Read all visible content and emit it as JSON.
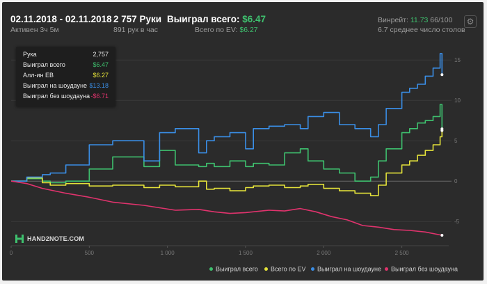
{
  "header": {
    "date_range": "02.11.2018 - 02.11.2018",
    "active": "Активен 3ч 5м",
    "hands": "2 757 Руки",
    "hands_per_hour": "891 рук в час",
    "won_total_label": "Выиграл всего:",
    "won_total_value": "$6.47",
    "ev_label": "Всего по EV:",
    "ev_value": "$6.27",
    "winrate_label": "Винрейт:",
    "winrate_value": "11.73",
    "winrate_unit": "66/100",
    "avg_tables": "6.7 среднее число столов",
    "settings_icon": "gear-icon"
  },
  "tooltip": {
    "rows": [
      {
        "label": "Рука",
        "value": "2,757",
        "color": "#e8e8e8"
      },
      {
        "label": "Выиграл всего",
        "value": "$6.47",
        "color": "#3ec06e"
      },
      {
        "label": "Алл-ин EB",
        "value": "$6.27",
        "color": "#e4e23a"
      },
      {
        "label": "Выиграл на шоудауне",
        "value": "$13.18",
        "color": "#3a8ee6"
      },
      {
        "label": "Выиграл без шоудауна",
        "value": "-$6.71",
        "color": "#e0336d"
      }
    ]
  },
  "logo": {
    "text": "HAND2NOTE.COM"
  },
  "legend": {
    "items": [
      {
        "label": "Выиграл всего",
        "color": "#3ec06e"
      },
      {
        "label": "Всего по EV",
        "color": "#e4e23a"
      },
      {
        "label": "Выиграл на шоудауне",
        "color": "#3a8ee6"
      },
      {
        "label": "Выиграл без шоудауна",
        "color": "#e0336d"
      }
    ]
  },
  "chart_data": {
    "type": "line",
    "xlim": [
      0,
      2800
    ],
    "ylim": [
      -8,
      17
    ],
    "x_ticks": [
      0,
      500,
      1000,
      1500,
      2000,
      2500
    ],
    "x_tick_labels": [
      "0",
      "500",
      "1 000",
      "1 500",
      "2 000",
      "2 500"
    ],
    "y_ticks": [
      15,
      10,
      5,
      0,
      -5
    ],
    "y_tick_labels": [
      "15",
      "10",
      "5",
      "0",
      "-5"
    ],
    "grid": "horizontal",
    "legend_position": "bottom-right",
    "series": [
      {
        "name": "Выиграл всего",
        "color": "#3ec06e",
        "step": true,
        "x": [
          0,
          100,
          200,
          250,
          350,
          500,
          650,
          850,
          950,
          1050,
          1200,
          1250,
          1300,
          1400,
          1500,
          1550,
          1650,
          1750,
          1850,
          1900,
          2000,
          2100,
          2200,
          2300,
          2350,
          2400,
          2500,
          2550,
          2600,
          2650,
          2700,
          2745,
          2757
        ],
        "y": [
          0,
          0.3,
          0,
          -0.2,
          0,
          1.5,
          3,
          1.8,
          3.8,
          2,
          1.8,
          2.2,
          1.8,
          2.5,
          1.8,
          2.2,
          2,
          3.5,
          4,
          2.5,
          1.5,
          1,
          0,
          0.5,
          2.5,
          4,
          6,
          6.5,
          7.2,
          7.5,
          8,
          9.5,
          6.47
        ]
      },
      {
        "name": "Всего по EV",
        "color": "#e4e23a",
        "step": true,
        "x": [
          0,
          100,
          200,
          250,
          350,
          500,
          650,
          850,
          950,
          1050,
          1200,
          1250,
          1300,
          1400,
          1500,
          1550,
          1650,
          1750,
          1850,
          1900,
          2000,
          2100,
          2200,
          2300,
          2350,
          2400,
          2500,
          2550,
          2600,
          2650,
          2700,
          2745,
          2757
        ],
        "y": [
          0,
          0.4,
          -0.2,
          -0.5,
          -0.3,
          -0.6,
          -0.5,
          -0.8,
          -0.5,
          -0.7,
          0,
          -1,
          -0.9,
          -1.2,
          -0.8,
          -0.6,
          -0.5,
          -0.8,
          -0.6,
          -0.4,
          -0.9,
          -1.2,
          -1.5,
          -1.8,
          -0.5,
          1,
          2,
          2.5,
          3.2,
          3.8,
          4.5,
          5.5,
          6.27
        ]
      },
      {
        "name": "Выиграл на шоудауне",
        "color": "#3a8ee6",
        "step": true,
        "x": [
          0,
          100,
          200,
          250,
          350,
          500,
          650,
          850,
          950,
          1050,
          1200,
          1250,
          1300,
          1400,
          1500,
          1550,
          1650,
          1750,
          1850,
          1900,
          2000,
          2100,
          2200,
          2300,
          2350,
          2400,
          2500,
          2550,
          2600,
          2650,
          2700,
          2745,
          2757
        ],
        "y": [
          0,
          0.5,
          0.8,
          1,
          2,
          4.5,
          5,
          2.5,
          6,
          6.5,
          3.5,
          5,
          5.5,
          6,
          4,
          6.5,
          6.8,
          7,
          6.5,
          8,
          8.5,
          7,
          6.5,
          5.5,
          7,
          9,
          11,
          11.5,
          12,
          13,
          14,
          15.8,
          13.18
        ]
      },
      {
        "name": "Выиграл без шоудауна",
        "color": "#e0336d",
        "step": false,
        "x": [
          0,
          100,
          200,
          350,
          500,
          650,
          850,
          950,
          1050,
          1200,
          1300,
          1400,
          1500,
          1650,
          1750,
          1850,
          1950,
          2050,
          2150,
          2250,
          2350,
          2450,
          2550,
          2650,
          2757
        ],
        "y": [
          0,
          -0.3,
          -0.9,
          -1.5,
          -2,
          -2.6,
          -3,
          -3.3,
          -3.6,
          -3.5,
          -3.8,
          -4,
          -3.9,
          -3.6,
          -3.7,
          -3.4,
          -3.8,
          -4.4,
          -4.8,
          -5.5,
          -5.7,
          -6,
          -6.1,
          -6.3,
          -6.71
        ]
      }
    ]
  }
}
